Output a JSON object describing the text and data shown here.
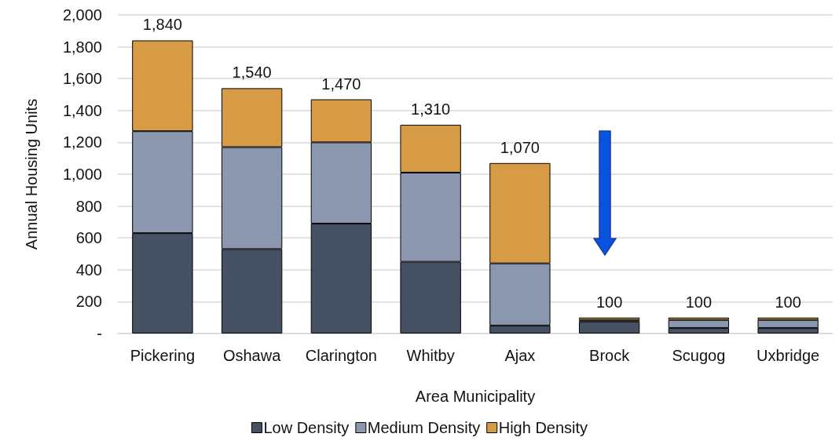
{
  "chart_data": {
    "type": "bar",
    "stacked": true,
    "xlabel": "Area Municipality",
    "ylabel": "Annual Housing Units",
    "categories": [
      "Pickering",
      "Oshawa",
      "Clarington",
      "Whitby",
      "Ajax",
      "Brock",
      "Scugog",
      "Uxbridge"
    ],
    "series": [
      {
        "name": "Low Density",
        "color": "#465263",
        "values": [
          630,
          530,
          690,
          450,
          50,
          75,
          35,
          35
        ]
      },
      {
        "name": "Medium Density",
        "color": "#8b97ae",
        "values": [
          640,
          640,
          510,
          560,
          390,
          10,
          50,
          50
        ]
      },
      {
        "name": "High Density",
        "color": "#d79b45",
        "values": [
          570,
          370,
          270,
          300,
          630,
          15,
          15,
          15
        ]
      }
    ],
    "totals": [
      "1,840",
      "1,540",
      "1,470",
      "1,310",
      "1,070",
      "100",
      "100",
      "100"
    ],
    "ylim": [
      0,
      2000
    ],
    "yticks": [
      {
        "value": 0,
        "label": "-"
      },
      200,
      400,
      600,
      800,
      {
        "value": 1000,
        "label": "1,000"
      },
      {
        "value": 1200,
        "label": "1,200"
      },
      {
        "value": 1400,
        "label": "1,400"
      },
      {
        "value": 1600,
        "label": "1,600"
      },
      {
        "value": 1800,
        "label": "1,800"
      },
      {
        "value": 2000,
        "label": "2,000"
      }
    ],
    "grid": "y",
    "legend": "bottom"
  }
}
